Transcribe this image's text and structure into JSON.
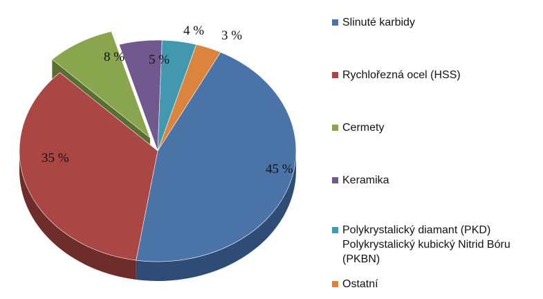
{
  "chart_data": {
    "type": "pie",
    "title": "",
    "legend_position": "right",
    "slices": [
      {
        "label": "Slinuté karbidy",
        "value": 45,
        "value_label": "45 %",
        "color": "#4A73A8",
        "dark": "#2E4C75"
      },
      {
        "label": "Rychlořezná ocel (HSS)",
        "value": 35,
        "value_label": "35 %",
        "color": "#AA4643",
        "dark": "#6E2C2A"
      },
      {
        "label": "Cermety",
        "value": 8,
        "value_label": "8 %",
        "color": "#89A54E",
        "dark": "#5A6E31",
        "exploded": true
      },
      {
        "label": "Keramika",
        "value": 5,
        "value_label": "5 %",
        "color": "#71588F",
        "dark": "#4A3A5E"
      },
      {
        "label": "Polykrystalický diamant (PKD)\nPolykrystalický kubický Nitrid Bóru\n(PKBN)",
        "value": 4,
        "value_label": "4 %",
        "color": "#4198AF",
        "dark": "#2A6473"
      },
      {
        "label": "Ostatní",
        "value": 3,
        "value_label": "3 %",
        "color": "#DB843D",
        "dark": "#8F5627"
      }
    ]
  }
}
